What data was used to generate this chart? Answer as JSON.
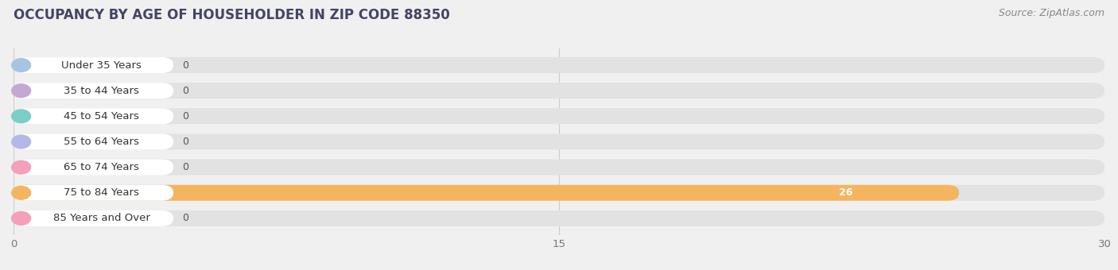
{
  "title": "OCCUPANCY BY AGE OF HOUSEHOLDER IN ZIP CODE 88350",
  "source": "Source: ZipAtlas.com",
  "categories": [
    "Under 35 Years",
    "35 to 44 Years",
    "45 to 54 Years",
    "55 to 64 Years",
    "65 to 74 Years",
    "75 to 84 Years",
    "85 Years and Over"
  ],
  "values": [
    0,
    0,
    0,
    0,
    0,
    26,
    0
  ],
  "bar_colors": [
    "#a8c4e0",
    "#c4a8d4",
    "#7ecec8",
    "#b4b8e8",
    "#f4a0b8",
    "#f5b460",
    "#f4a0b8"
  ],
  "background_color": "#f0f0f0",
  "xlim_data": [
    0,
    30
  ],
  "xticks": [
    0,
    15,
    30
  ],
  "title_fontsize": 12,
  "source_fontsize": 9,
  "label_fontsize": 9.5,
  "value_fontsize": 9,
  "bar_height": 0.62
}
